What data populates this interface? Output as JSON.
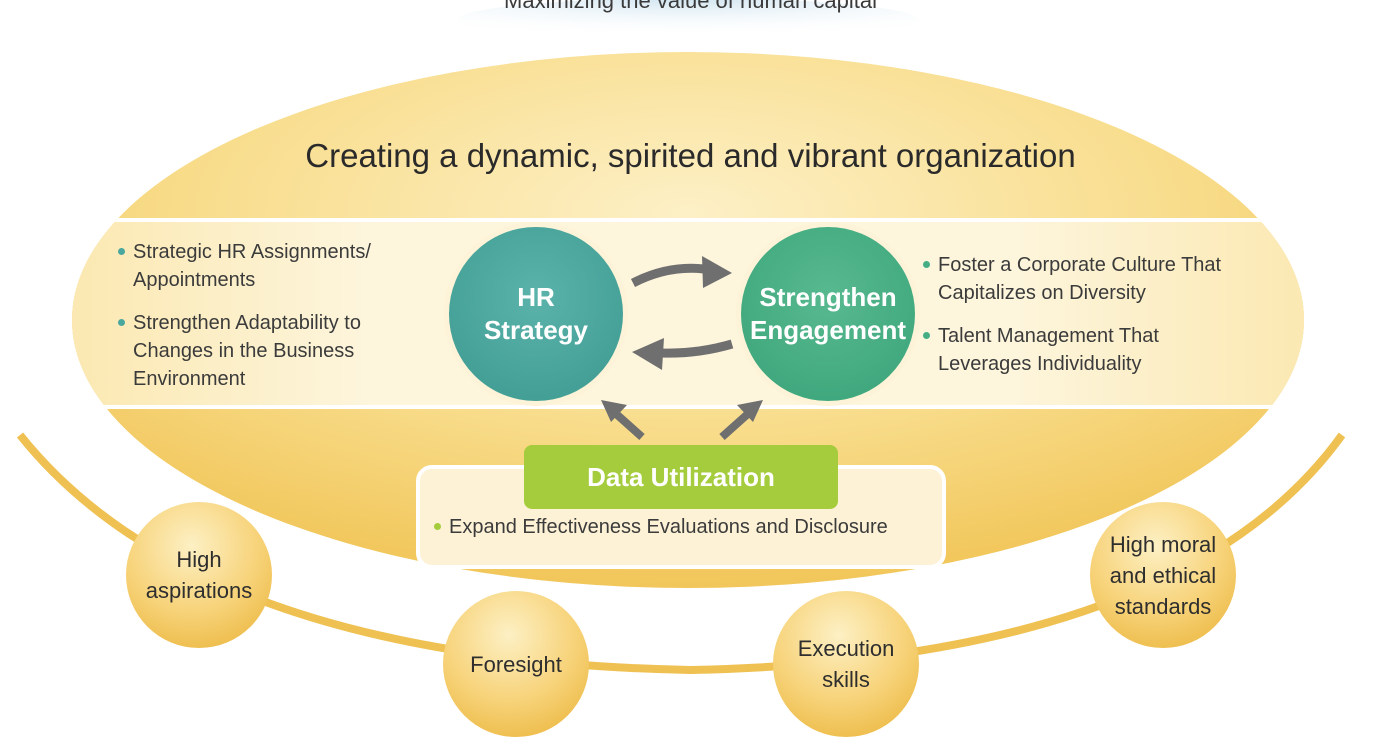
{
  "top_title": "Maximizing the value of human capital",
  "main_title": "Creating a dynamic, spirited and vibrant organization",
  "hr_strategy": {
    "label_lines": [
      "HR",
      "Strategy"
    ],
    "bullets": [
      "Strategic HR Assignments/ Appointments",
      "Strengthen Adaptability to Changes in the Business Environment"
    ]
  },
  "engagement": {
    "label_lines": [
      "Strengthen",
      "Engagement"
    ],
    "bullets": [
      "Foster a Corporate Culture That Capitalizes on Diversity",
      "Talent Management That Leverages Individuality"
    ]
  },
  "data_utilization": {
    "label": "Data Utilization",
    "bullet": "Expand Effectiveness Evaluations and Disclosure"
  },
  "traits": [
    {
      "lines": [
        "High",
        "aspirations"
      ]
    },
    {
      "lines": [
        "Foresight"
      ]
    },
    {
      "lines": [
        "Execution",
        "skills"
      ]
    },
    {
      "lines": [
        "High moral",
        "and ethical",
        "standards"
      ]
    }
  ],
  "colors": {
    "hr_circle": "#4aa79e",
    "engagement_circle": "#45ae85",
    "data_header": "#a4cc3c",
    "arrow": "#6f6f6f",
    "gold": "#f0c251"
  }
}
